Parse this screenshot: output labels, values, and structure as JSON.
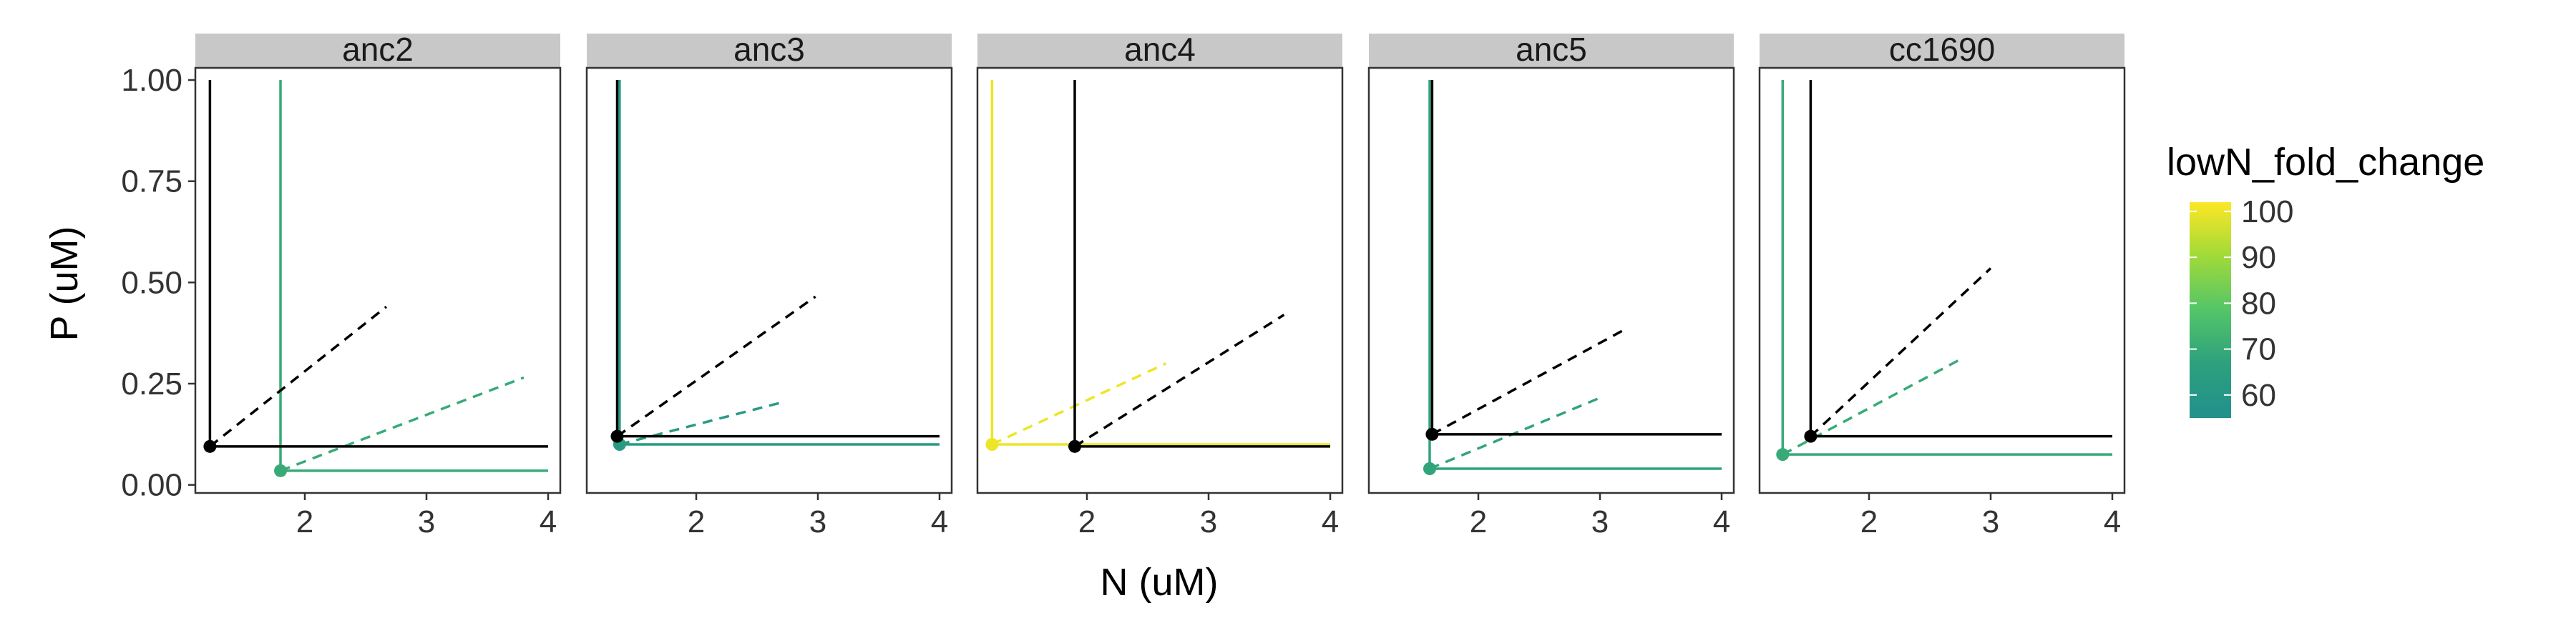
{
  "chart_data": {
    "type": "line",
    "xlabel": "N (uM)",
    "ylabel": "P (uM)",
    "xlim": [
      1.1,
      4.1
    ],
    "ylim": [
      -0.02,
      1.03
    ],
    "x_ticks": [
      {
        "value": 2,
        "label": "2"
      },
      {
        "value": 3,
        "label": "3"
      },
      {
        "value": 4,
        "label": "4"
      }
    ],
    "y_ticks": [
      {
        "value": 0.0,
        "label": "0.00"
      },
      {
        "value": 0.25,
        "label": "0.25"
      },
      {
        "value": 0.5,
        "label": "0.50"
      },
      {
        "value": 0.75,
        "label": "0.75"
      },
      {
        "value": 1.0,
        "label": "1.00"
      }
    ],
    "grid": false,
    "legend": {
      "title": "lowN_fold_change",
      "placement": "right",
      "type": "colorbar",
      "min": 55,
      "max": 102,
      "ticks": [
        {
          "value": 60,
          "label": "60"
        },
        {
          "value": 70,
          "label": "70"
        },
        {
          "value": 80,
          "label": "80"
        },
        {
          "value": 90,
          "label": "90"
        },
        {
          "value": 100,
          "label": "100"
        }
      ],
      "stops": [
        "#21918c",
        "#2da07d",
        "#54c568",
        "#a0da39",
        "#fde725"
      ]
    },
    "panels": [
      {
        "label": "anc2",
        "ancestor": {
          "n": 1.22,
          "p": 0.095,
          "p_top": 1.0,
          "n_right": 4.0,
          "dash_to": [
            2.67,
            0.44
          ]
        },
        "evolved": {
          "n": 1.8,
          "p": 0.035,
          "p_top": 1.0,
          "n_right": 4.0,
          "dash_to": [
            3.8,
            0.265
          ],
          "lowN_fold_change": 70
        }
      },
      {
        "label": "anc3",
        "ancestor": {
          "n": 1.35,
          "p": 0.12,
          "p_top": 1.0,
          "n_right": 4.0,
          "dash_to": [
            2.98,
            0.465
          ]
        },
        "evolved": {
          "n": 1.37,
          "p": 0.1,
          "p_top": 1.0,
          "n_right": 4.0,
          "dash_to": [
            2.72,
            0.205
          ],
          "lowN_fold_change": 62
        }
      },
      {
        "label": "anc4",
        "ancestor": {
          "n": 1.9,
          "p": 0.095,
          "p_top": 1.0,
          "n_right": 4.0,
          "dash_to": [
            3.62,
            0.42
          ]
        },
        "evolved": {
          "n": 1.22,
          "p": 0.1,
          "p_top": 1.0,
          "n_right": 4.0,
          "dash_to": [
            2.65,
            0.3
          ],
          "lowN_fold_change": 100
        }
      },
      {
        "label": "anc5",
        "ancestor": {
          "n": 1.62,
          "p": 0.125,
          "p_top": 1.0,
          "n_right": 4.0,
          "dash_to": [
            3.18,
            0.38
          ]
        },
        "evolved": {
          "n": 1.6,
          "p": 0.04,
          "p_top": 1.0,
          "n_right": 4.0,
          "dash_to": [
            3.0,
            0.215
          ],
          "lowN_fold_change": 68
        }
      },
      {
        "label": "cc1690",
        "ancestor": {
          "n": 1.52,
          "p": 0.12,
          "p_top": 1.0,
          "n_right": 4.0,
          "dash_to": [
            3.0,
            0.535
          ]
        },
        "evolved": {
          "n": 1.29,
          "p": 0.075,
          "p_top": 1.0,
          "n_right": 4.0,
          "dash_to": [
            2.75,
            0.31
          ],
          "lowN_fold_change": 70
        }
      }
    ]
  }
}
